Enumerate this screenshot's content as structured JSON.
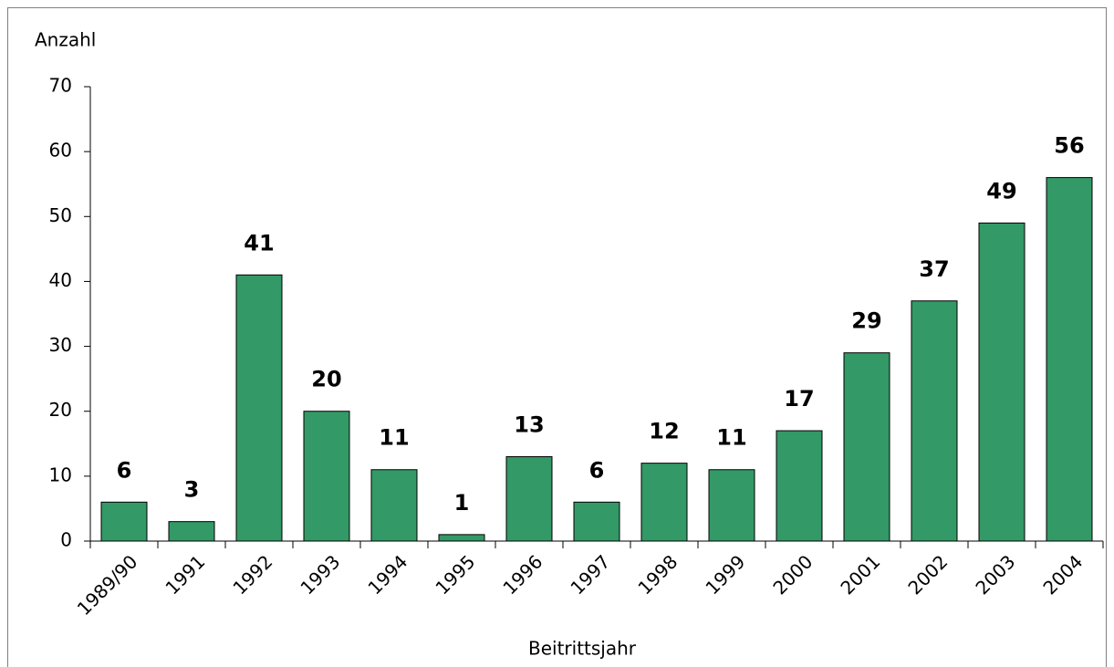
{
  "chart_data": {
    "type": "bar",
    "y_label": "Anzahl",
    "x_label": "Beitrittsjahr",
    "categories": [
      "1989/90",
      "1991",
      "1992",
      "1993",
      "1994",
      "1995",
      "1996",
      "1997",
      "1998",
      "1999",
      "2000",
      "2001",
      "2002",
      "2003",
      "2004"
    ],
    "values": [
      6,
      3,
      41,
      20,
      11,
      1,
      13,
      6,
      12,
      11,
      17,
      29,
      37,
      49,
      56
    ],
    "color": "#339966",
    "ylim": [
      0,
      70
    ],
    "yticks": [
      0,
      10,
      20,
      30,
      40,
      50,
      60,
      70
    ],
    "grid": false
  }
}
